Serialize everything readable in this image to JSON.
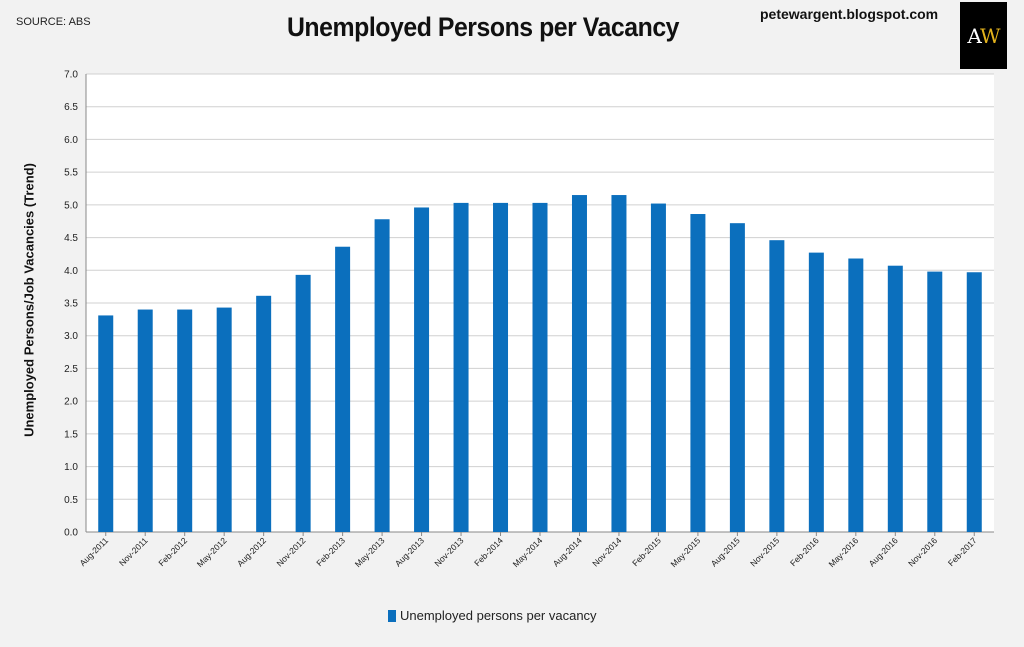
{
  "source": "SOURCE: ABS",
  "blog": "petewargent.blogspot.com",
  "logo": {
    "left": "A",
    "right": "W"
  },
  "colors": {
    "bar": "#0b6fbd",
    "plot_bg": "#ffffff",
    "page_bg": "#f2f2f2",
    "grid": "#d0d0d0",
    "logo_accent": "#e3b21c"
  },
  "chart_data": {
    "type": "bar",
    "title": "Unemployed Persons per Vacancy",
    "xlabel": "",
    "ylabel": "Unemployed Persons/Job Vacancies (Trend)",
    "ylim": [
      0,
      7
    ],
    "y_ticks": [
      "0.0",
      "0.5",
      "1.0",
      "1.5",
      "2.0",
      "2.5",
      "3.0",
      "3.5",
      "4.0",
      "4.5",
      "5.0",
      "5.5",
      "6.0",
      "6.5",
      "7.0"
    ],
    "grid": true,
    "legend": "bottom-center",
    "categories": [
      "Aug-2011",
      "Nov-2011",
      "Feb-2012",
      "May-2012",
      "Aug-2012",
      "Nov-2012",
      "Feb-2013",
      "May-2013",
      "Aug-2013",
      "Nov-2013",
      "Feb-2014",
      "May-2014",
      "Aug-2014",
      "Nov-2014",
      "Feb-2015",
      "May-2015",
      "Aug-2015",
      "Nov-2015",
      "Feb-2016",
      "May-2016",
      "Aug-2016",
      "Nov-2016",
      "Feb-2017"
    ],
    "series": [
      {
        "name": "Unemployed persons per vacancy",
        "values": [
          3.31,
          3.4,
          3.4,
          3.43,
          3.61,
          3.93,
          4.36,
          4.78,
          4.96,
          5.03,
          5.03,
          5.03,
          5.15,
          5.15,
          5.02,
          4.86,
          4.72,
          4.46,
          4.27,
          4.18,
          4.07,
          3.98,
          3.97
        ]
      }
    ]
  }
}
